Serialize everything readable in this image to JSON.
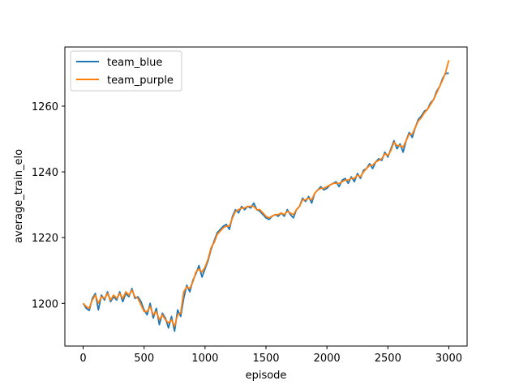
{
  "chart_data": {
    "type": "line",
    "title": "",
    "xlabel": "episode",
    "ylabel": "average_train_elo",
    "xlim": [
      -150,
      3150
    ],
    "ylim": [
      1187,
      1278
    ],
    "xticks": [
      0,
      500,
      1000,
      1500,
      2000,
      2500,
      3000
    ],
    "yticks": [
      1200,
      1220,
      1240,
      1260
    ],
    "grid": false,
    "legend_position": "top-left",
    "series": [
      {
        "name": "team_blue",
        "color": "#1f77b4",
        "x": [
          0,
          25,
          50,
          75,
          100,
          125,
          150,
          175,
          200,
          225,
          250,
          275,
          300,
          325,
          350,
          375,
          400,
          425,
          450,
          475,
          500,
          525,
          550,
          575,
          600,
          625,
          650,
          675,
          700,
          725,
          750,
          775,
          800,
          825,
          850,
          875,
          900,
          925,
          950,
          975,
          1000,
          1025,
          1050,
          1075,
          1100,
          1125,
          1150,
          1175,
          1200,
          1225,
          1250,
          1275,
          1300,
          1325,
          1350,
          1375,
          1400,
          1425,
          1450,
          1475,
          1500,
          1525,
          1550,
          1575,
          1600,
          1625,
          1650,
          1675,
          1700,
          1725,
          1750,
          1775,
          1800,
          1825,
          1850,
          1875,
          1900,
          1925,
          1950,
          1975,
          2000,
          2025,
          2050,
          2075,
          2100,
          2125,
          2150,
          2175,
          2200,
          2225,
          2250,
          2275,
          2300,
          2325,
          2350,
          2375,
          2400,
          2425,
          2450,
          2475,
          2500,
          2525,
          2550,
          2575,
          2600,
          2625,
          2650,
          2675,
          2700,
          2725,
          2750,
          2775,
          2800,
          2825,
          2850,
          2875,
          2900,
          2925,
          2950,
          2975,
          3000
        ],
        "values": [
          1200,
          1198.5,
          1197.8,
          1201.5,
          1203,
          1198,
          1202.5,
          1201,
          1203.5,
          1200.5,
          1202,
          1201,
          1203.5,
          1200.5,
          1203,
          1202,
          1204.5,
          1201.5,
          1202,
          1200.5,
          1198,
          1196.5,
          1200,
          1195.5,
          1198.5,
          1193.5,
          1197,
          1195.5,
          1192.5,
          1196,
          1191.5,
          1198,
          1196,
          1201.5,
          1205.5,
          1203.5,
          1207,
          1209,
          1211.5,
          1208,
          1210.5,
          1213,
          1216.5,
          1219,
          1221.5,
          1222.5,
          1223.5,
          1224,
          1222.5,
          1226.5,
          1228.5,
          1227.5,
          1229.5,
          1228.5,
          1229.5,
          1229,
          1230.5,
          1228.5,
          1228,
          1227,
          1226,
          1225.5,
          1226.5,
          1227,
          1226.5,
          1227.5,
          1226.5,
          1228.5,
          1227,
          1226,
          1228.5,
          1229.5,
          1232,
          1231,
          1232.5,
          1230.5,
          1233.5,
          1234.5,
          1235.5,
          1234.5,
          1235,
          1236,
          1236.5,
          1237,
          1235.5,
          1237.5,
          1238,
          1236.5,
          1238.5,
          1237,
          1239.5,
          1238,
          1240.5,
          1241,
          1242.5,
          1241,
          1243,
          1244,
          1243.5,
          1246,
          1244.5,
          1247,
          1249.5,
          1247,
          1248.5,
          1246,
          1249.5,
          1252,
          1250.5,
          1253.5,
          1256,
          1257,
          1258.5,
          1259,
          1261,
          1262,
          1264.5,
          1266,
          1268.5,
          1270,
          1270
        ]
      },
      {
        "name": "team_purple",
        "color": "#ff7f0e",
        "x": [
          0,
          25,
          50,
          75,
          100,
          125,
          150,
          175,
          200,
          225,
          250,
          275,
          300,
          325,
          350,
          375,
          400,
          425,
          450,
          475,
          500,
          525,
          550,
          575,
          600,
          625,
          650,
          675,
          700,
          725,
          750,
          775,
          800,
          825,
          850,
          875,
          900,
          925,
          950,
          975,
          1000,
          1025,
          1050,
          1075,
          1100,
          1125,
          1150,
          1175,
          1200,
          1225,
          1250,
          1275,
          1300,
          1325,
          1350,
          1375,
          1400,
          1425,
          1450,
          1475,
          1500,
          1525,
          1550,
          1575,
          1600,
          1625,
          1650,
          1675,
          1700,
          1725,
          1750,
          1775,
          1800,
          1825,
          1850,
          1875,
          1900,
          1925,
          1950,
          1975,
          2000,
          2025,
          2050,
          2075,
          2100,
          2125,
          2150,
          2175,
          2200,
          2225,
          2250,
          2275,
          2300,
          2325,
          2350,
          2375,
          2400,
          2425,
          2450,
          2475,
          2500,
          2525,
          2550,
          2575,
          2600,
          2625,
          2650,
          2675,
          2700,
          2725,
          2750,
          2775,
          2800,
          2825,
          2850,
          2875,
          2900,
          2925,
          2950,
          2975,
          3000
        ],
        "values": [
          1200,
          1199,
          1198.5,
          1201,
          1202.5,
          1200,
          1202,
          1201.5,
          1203,
          1201,
          1202.5,
          1201.5,
          1203,
          1201.5,
          1203.5,
          1202.5,
          1204,
          1202,
          1201.5,
          1199.5,
          1197.5,
          1197.5,
          1199,
          1196.5,
          1197.5,
          1195,
          1196.5,
          1195,
          1194,
          1195,
          1193,
          1196.5,
          1197,
          1203.5,
          1205,
          1204.5,
          1206.5,
          1209.5,
          1210.5,
          1209.5,
          1211,
          1213.5,
          1217,
          1218.5,
          1221,
          1222,
          1223,
          1223.5,
          1223.5,
          1226,
          1228,
          1228.5,
          1229,
          1229,
          1229.5,
          1229.5,
          1229.5,
          1228.5,
          1228.5,
          1227.5,
          1226.5,
          1226,
          1226.5,
          1227,
          1227,
          1227.5,
          1227,
          1228,
          1227.5,
          1227,
          1228.5,
          1229.5,
          1231.5,
          1231.5,
          1232,
          1231.5,
          1233.5,
          1234.5,
          1235,
          1235,
          1235.5,
          1236,
          1236.5,
          1236.5,
          1236.5,
          1237,
          1237.5,
          1237.5,
          1238,
          1238,
          1239,
          1238.5,
          1240,
          1241,
          1242,
          1242,
          1243,
          1243.5,
          1244,
          1245.5,
          1245,
          1246.5,
          1249,
          1248,
          1248,
          1247.5,
          1249.5,
          1251.5,
          1251.5,
          1253.5,
          1255.5,
          1256.5,
          1258,
          1259,
          1260.5,
          1262,
          1264,
          1266,
          1268,
          1270.5,
          1274
        ]
      }
    ]
  }
}
